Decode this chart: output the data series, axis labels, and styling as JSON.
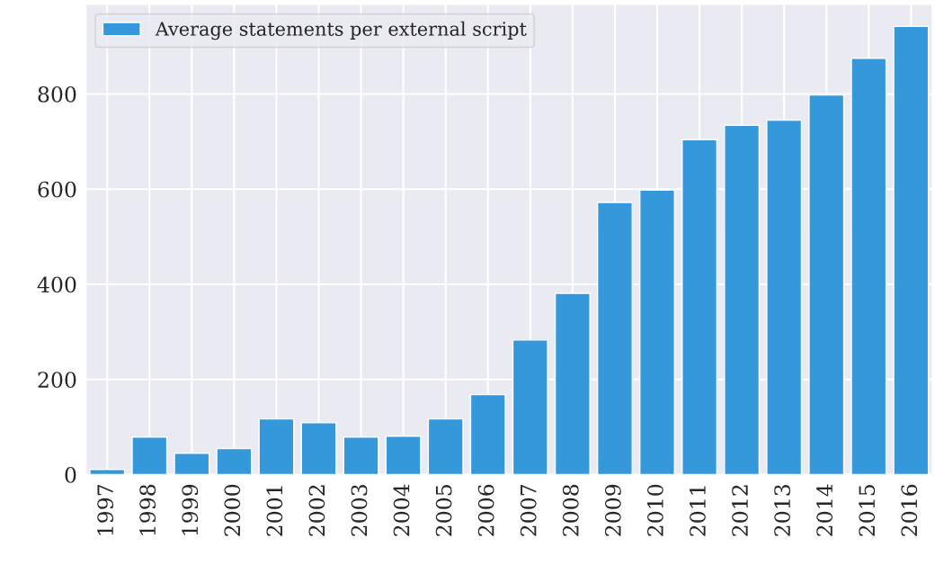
{
  "chart_data": {
    "type": "bar",
    "categories": [
      "1997",
      "1998",
      "1999",
      "2000",
      "2001",
      "2002",
      "2003",
      "2004",
      "2005",
      "2006",
      "2007",
      "2008",
      "2009",
      "2010",
      "2011",
      "2012",
      "2013",
      "2014",
      "2015",
      "2016"
    ],
    "series": [
      {
        "name": "Average statements per external script",
        "color": "#3498db",
        "values": [
          11,
          79,
          45,
          55,
          117,
          109,
          79,
          81,
          117,
          168,
          283,
          381,
          572,
          598,
          704,
          734,
          745,
          798,
          875,
          942
        ]
      }
    ],
    "ylim": [
      0,
      988
    ],
    "yticks": [
      0,
      200,
      400,
      600,
      800
    ],
    "grid": true,
    "legend": "top left"
  }
}
